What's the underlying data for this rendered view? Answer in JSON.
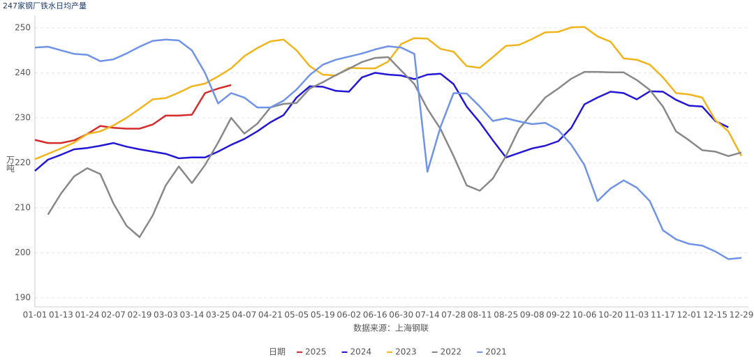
{
  "chart_data": {
    "type": "line",
    "title": "247家钢厂铁水日均产量",
    "y_label": "万吨",
    "x_label": "数据来源：上海钢联",
    "legend_title": "日期",
    "categories": [
      "01-01",
      null,
      "01-13",
      null,
      "01-24",
      null,
      "02-07",
      null,
      "02-19",
      null,
      "03-03",
      null,
      "03-14",
      null,
      "03-25",
      null,
      "04-07",
      null,
      "04-21",
      null,
      "05-05",
      null,
      "05-19",
      null,
      "06-02",
      null,
      "06-16",
      null,
      "06-30",
      null,
      "07-14",
      null,
      "07-28",
      null,
      "08-11",
      null,
      "08-25",
      null,
      "09-08",
      null,
      "09-22",
      null,
      "10-06",
      null,
      "10-20",
      null,
      "11-03",
      null,
      "11-17",
      null,
      "12-01",
      null,
      "12-15",
      null,
      "12-29"
    ],
    "ylim": [
      188,
      252
    ],
    "yticks": [
      190,
      200,
      210,
      220,
      230,
      240,
      250
    ],
    "grid": true,
    "series": [
      {
        "name": "2025",
        "color": "#d42b2b",
        "values": [
          225.1,
          224.4,
          224.4,
          225,
          226.4,
          228.2,
          227.8,
          227.6,
          227.6,
          228.5,
          230.5,
          230.5,
          230.7,
          235.5,
          236.5,
          237.3,
          null,
          null,
          null,
          null,
          null,
          null,
          null,
          null,
          null,
          null,
          null,
          null,
          null,
          null,
          null,
          null,
          null,
          null,
          null,
          null,
          null,
          null,
          null,
          null,
          null,
          null,
          null,
          null,
          null,
          null,
          null,
          null,
          null,
          null,
          null,
          null,
          null,
          null,
          null
        ]
      },
      {
        "name": "2024",
        "color": "#2317d6",
        "values": [
          218.2,
          220.7,
          221.8,
          223,
          223.3,
          223.8,
          224.4,
          223.6,
          223,
          222.5,
          222,
          221,
          221.2,
          221.2,
          222.5,
          224,
          225.3,
          227,
          229,
          230.6,
          234.5,
          237,
          236.9,
          236,
          235.8,
          239,
          240,
          239.6,
          239.4,
          238.6,
          239.6,
          239.8,
          237.5,
          232.5,
          229,
          225,
          221.2,
          222.2,
          223.2,
          223.8,
          224.8,
          227.8,
          233,
          234.5,
          235.8,
          235.5,
          234.1,
          235.9,
          235.8,
          234,
          232.7,
          232.5,
          229.3,
          227.9,
          null
        ]
      },
      {
        "name": "2023",
        "color": "#f0b41c",
        "values": [
          220.8,
          222,
          223.2,
          224.5,
          226.4,
          227,
          228.3,
          230,
          232,
          234.1,
          234.4,
          235.6,
          237,
          237.6,
          239.2,
          241,
          243.7,
          245.5,
          247,
          247.4,
          245,
          241.5,
          239.6,
          239.4,
          241.1,
          241,
          241,
          242.5,
          246.4,
          247.7,
          247.6,
          245.3,
          244.7,
          241.5,
          241.1,
          243.5,
          246,
          246.2,
          247.5,
          249,
          249.1,
          250.1,
          250.2,
          248.1,
          246.9,
          243.2,
          242.9,
          241.8,
          239,
          235.5,
          235.2,
          234.5,
          229.5,
          227,
          221.5
        ]
      },
      {
        "name": "2022",
        "color": "#888888",
        "values": [
          null,
          208.5,
          213.2,
          217,
          218.8,
          217.5,
          211,
          206,
          203.5,
          208.3,
          215,
          219.2,
          215.5,
          219.5,
          224.5,
          230,
          226.5,
          228.7,
          232.3,
          233.1,
          233.3,
          236.5,
          237.9,
          239.5,
          240.9,
          242.4,
          243.3,
          243.5,
          240.5,
          237.5,
          232,
          227.5,
          221.5,
          215,
          213.8,
          216.5,
          221.5,
          227.5,
          231,
          234.5,
          236.5,
          238.7,
          240.2,
          240.2,
          240.1,
          240.1,
          238.4,
          236.2,
          232.5,
          227,
          225,
          222.8,
          222.5,
          221.5,
          222.3
        ]
      },
      {
        "name": "2021",
        "color": "#6f93e6",
        "values": [
          245.6,
          245.8,
          245,
          244.2,
          244,
          242.6,
          243,
          244.3,
          245.8,
          247.1,
          247.4,
          247.2,
          245,
          240,
          233.2,
          235.5,
          234.5,
          232.3,
          232.3,
          233.8,
          236.3,
          239.5,
          241.8,
          242.9,
          243.6,
          244.3,
          245.2,
          245.9,
          245.6,
          244.2,
          218,
          228,
          235.5,
          235.4,
          232.5,
          229.3,
          229.9,
          229.2,
          228.6,
          228.9,
          227.3,
          224,
          219.5,
          211.5,
          214.3,
          216.1,
          214.5,
          211.5,
          205,
          203,
          202,
          201.6,
          200.3,
          198.6,
          198.9
        ]
      }
    ]
  }
}
